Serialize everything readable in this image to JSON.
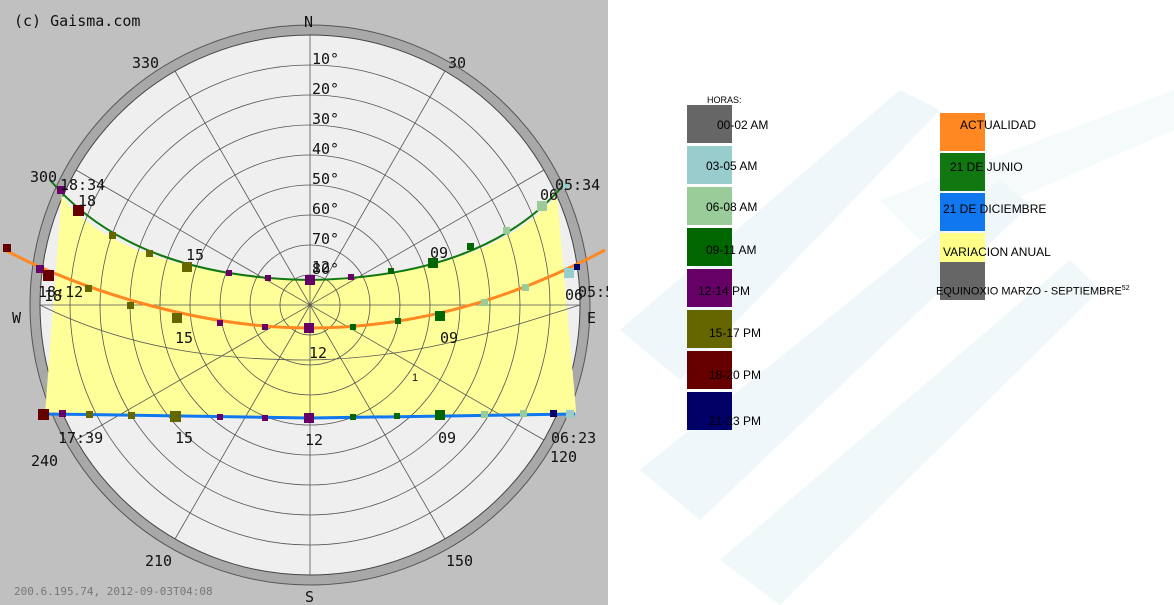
{
  "diagram": {
    "copyright": "(c) Gaisma.com",
    "footer": "200.6.195.74, 2012-09-03T04:08",
    "compass": {
      "north": "N",
      "south": "S",
      "east": "E",
      "west": "W"
    },
    "azimuth_labels": [
      "30",
      "120",
      "150",
      "210",
      "240",
      "300",
      "330"
    ],
    "elevation_labels": [
      "10°",
      "20°",
      "30°",
      "40°",
      "50°",
      "60°",
      "70°",
      "80°"
    ],
    "june": {
      "sunrise": "05:34",
      "sunset": "18:34",
      "hours": [
        "06",
        "09",
        "12",
        "15",
        "18"
      ]
    },
    "equinox": {
      "sunrise": "05:5",
      "sunset": "18:12",
      "hours": [
        "06",
        "09",
        "12",
        "15",
        "18"
      ]
    },
    "december": {
      "sunrise": "06:23",
      "sunset": "17:39",
      "hours": [
        "09",
        "12",
        "15"
      ]
    },
    "marker": "1"
  },
  "legend_hours": {
    "heading": "HORAS:",
    "items": [
      {
        "label": "00-02 AM",
        "color": "#666666"
      },
      {
        "label": "03-05 AM",
        "color": "#99cccc"
      },
      {
        "label": "06-08 AM",
        "color": "#99cc99"
      },
      {
        "label": "09-11 AM",
        "color": "#006600"
      },
      {
        "label": "12-14 PM",
        "color": "#660066"
      },
      {
        "label": "15-17 PM",
        "color": "#666600"
      },
      {
        "label": "18-20 PM",
        "color": "#660000"
      },
      {
        "label": "21-23 PM",
        "color": "#000066"
      }
    ]
  },
  "legend_paths": {
    "items": [
      {
        "label": "ACTUALIDAD",
        "color": "#ff8822"
      },
      {
        "label": "21 DE JUNIO",
        "color": "#117711"
      },
      {
        "label": "21 DE DICIEMBRE",
        "color": "#1177ee"
      },
      {
        "label": "VARIACION ANUAL",
        "color": "#ffff88"
      },
      {
        "label": "EQUINOXIO MARZO - SEPTIEMBRE",
        "color": "#666666",
        "superscript": "52"
      }
    ]
  }
}
